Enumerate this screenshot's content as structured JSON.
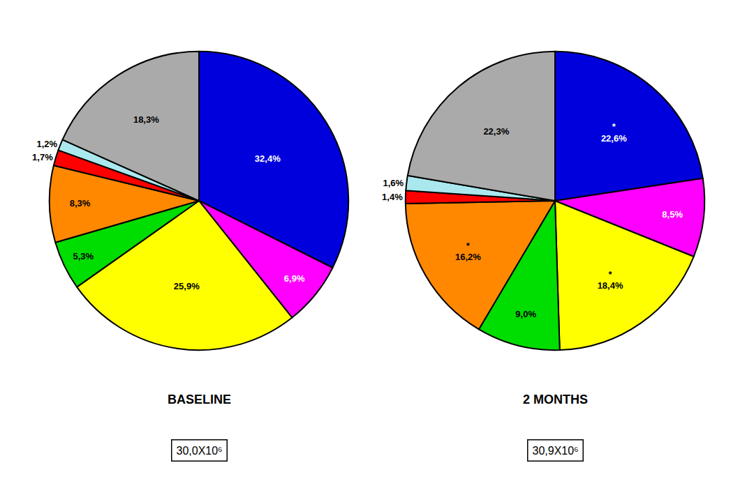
{
  "chart_data": [
    {
      "type": "pie",
      "title": "BASELINE",
      "values": [
        32.4,
        6.9,
        25.9,
        5.3,
        8.3,
        1.7,
        1.2,
        18.3
      ],
      "value_labels": [
        "32,4%",
        "6,9%",
        "25,9%",
        "5,3%",
        "8,3%",
        "1,7%",
        "1,2%",
        "18,3%"
      ],
      "colors": [
        "#0000dd",
        "#ff00ff",
        "#ffff00",
        "#00dd00",
        "#ff8800",
        "#ff0000",
        "#aae8ee",
        "#aaaaaa"
      ],
      "data_labels": true,
      "annotation": "30,0X10⁶"
    },
    {
      "type": "pie",
      "title": "2 MONTHS",
      "values": [
        22.6,
        8.5,
        18.4,
        9.0,
        16.2,
        1.4,
        1.6,
        22.3
      ],
      "value_labels": [
        "*\n22,6%",
        "8,5%",
        "*\n18,4%",
        "9,0%",
        "*\n16,2%",
        "1,4%",
        "1,6%",
        "22,3%"
      ],
      "colors": [
        "#0000dd",
        "#ff00ff",
        "#ffff00",
        "#00dd00",
        "#ff8800",
        "#ff0000",
        "#aae8ee",
        "#aaaaaa"
      ],
      "data_labels": true,
      "annotation": "30,9X10⁶"
    }
  ]
}
